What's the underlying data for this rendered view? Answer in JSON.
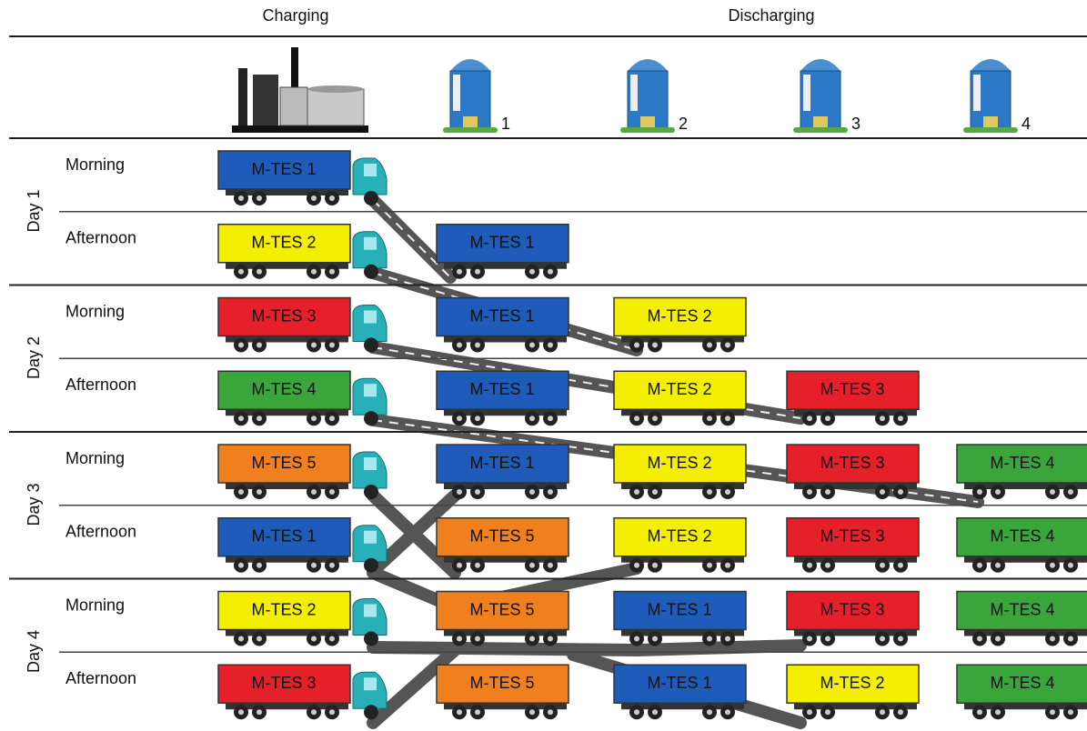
{
  "header": {
    "charging": "Charging",
    "discharging": "Discharging"
  },
  "hotels": [
    "1",
    "2",
    "3",
    "4"
  ],
  "days": [
    {
      "label": "Day 1",
      "periods": [
        {
          "label": "Morning",
          "charging": {
            "label": "M-TES 1",
            "color": "#1f5bb8"
          },
          "discharging": [
            null,
            null,
            null,
            null
          ]
        },
        {
          "label": "Afternoon",
          "charging": {
            "label": "M-TES 2",
            "color": "#f4ef00"
          },
          "discharging": [
            {
              "label": "M-TES 1",
              "color": "#1f5bb8"
            },
            null,
            null,
            null
          ]
        }
      ]
    },
    {
      "label": "Day 2",
      "periods": [
        {
          "label": "Morning",
          "charging": {
            "label": "M-TES 3",
            "color": "#e6202a"
          },
          "discharging": [
            {
              "label": "M-TES 1",
              "color": "#1f5bb8"
            },
            {
              "label": "M-TES 2",
              "color": "#f4ef00"
            },
            null,
            null
          ]
        },
        {
          "label": "Afternoon",
          "charging": {
            "label": "M-TES 4",
            "color": "#3aa53a"
          },
          "discharging": [
            {
              "label": "M-TES 1",
              "color": "#1f5bb8"
            },
            {
              "label": "M-TES 2",
              "color": "#f4ef00"
            },
            {
              "label": "M-TES 3",
              "color": "#e6202a"
            },
            null
          ]
        }
      ]
    },
    {
      "label": "Day 3",
      "periods": [
        {
          "label": "Morning",
          "charging": {
            "label": "M-TES 5",
            "color": "#f0801e"
          },
          "discharging": [
            {
              "label": "M-TES 1",
              "color": "#1f5bb8"
            },
            {
              "label": "M-TES 2",
              "color": "#f4ef00"
            },
            {
              "label": "M-TES 3",
              "color": "#e6202a"
            },
            {
              "label": "M-TES 4",
              "color": "#3aa53a"
            }
          ]
        },
        {
          "label": "Afternoon",
          "charging": {
            "label": "M-TES 1",
            "color": "#1f5bb8"
          },
          "discharging": [
            {
              "label": "M-TES 5",
              "color": "#f0801e"
            },
            {
              "label": "M-TES 2",
              "color": "#f4ef00"
            },
            {
              "label": "M-TES 3",
              "color": "#e6202a"
            },
            {
              "label": "M-TES 4",
              "color": "#3aa53a"
            }
          ]
        }
      ]
    },
    {
      "label": "Day 4",
      "periods": [
        {
          "label": "Morning",
          "charging": {
            "label": "M-TES 2",
            "color": "#f4ef00"
          },
          "discharging": [
            {
              "label": "M-TES 5",
              "color": "#f0801e"
            },
            {
              "label": "M-TES 1",
              "color": "#1f5bb8"
            },
            {
              "label": "M-TES 3",
              "color": "#e6202a"
            },
            {
              "label": "M-TES 4",
              "color": "#3aa53a"
            }
          ]
        },
        {
          "label": "Afternoon",
          "charging": {
            "label": "M-TES 3",
            "color": "#e6202a"
          },
          "discharging": [
            {
              "label": "M-TES 5",
              "color": "#f0801e"
            },
            {
              "label": "M-TES 1",
              "color": "#1f5bb8"
            },
            {
              "label": "M-TES 2",
              "color": "#f4ef00"
            },
            {
              "label": "M-TES 4",
              "color": "#3aa53a"
            }
          ]
        }
      ]
    }
  ]
}
